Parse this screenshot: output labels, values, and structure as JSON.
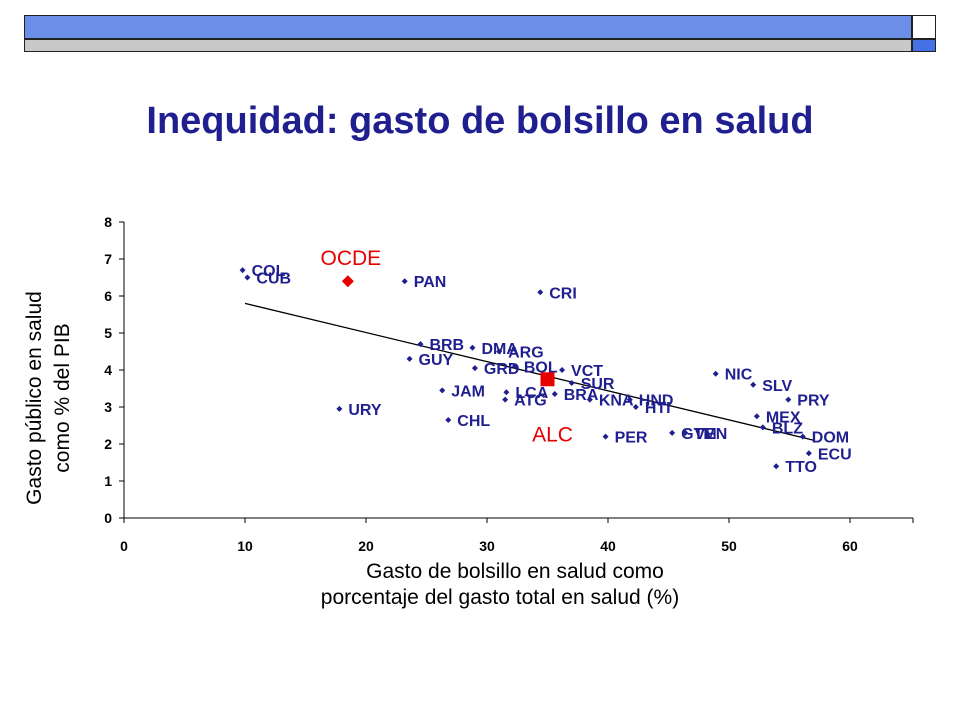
{
  "slide": {
    "title": "Inequidad: gasto de bolsillo en salud"
  },
  "chart_data": {
    "type": "scatter",
    "xlabel": [
      "Gasto de bolsillo en salud como",
      "porcentaje del gasto total en salud (%)"
    ],
    "ylabel": [
      "Gasto público en salud",
      "como % del PIB"
    ],
    "xlim": [
      0,
      65
    ],
    "ylim": [
      0,
      8
    ],
    "xticks": [
      0,
      10,
      20,
      30,
      40,
      50,
      60
    ],
    "yticks": [
      0,
      1,
      2,
      3,
      4,
      5,
      6,
      7,
      8
    ],
    "trendline": {
      "x": [
        10,
        57
      ],
      "y": [
        5.8,
        2.1
      ]
    },
    "points": [
      {
        "label": "COL",
        "x": 9.8,
        "y": 6.7
      },
      {
        "label": "CUB",
        "x": 10.2,
        "y": 6.5
      },
      {
        "label": "PAN",
        "x": 23.2,
        "y": 6.4
      },
      {
        "label": "CRI",
        "x": 34.4,
        "y": 6.1
      },
      {
        "label": "BRB",
        "x": 24.5,
        "y": 4.7
      },
      {
        "label": "DMA",
        "x": 28.8,
        "y": 4.6
      },
      {
        "label": "ARG",
        "x": 31.0,
        "y": 4.5
      },
      {
        "label": "GUY",
        "x": 23.6,
        "y": 4.3
      },
      {
        "label": "GRD",
        "x": 29.0,
        "y": 4.05
      },
      {
        "label": "BOL",
        "x": 32.3,
        "y": 4.1
      },
      {
        "label": "VCT",
        "x": 36.2,
        "y": 4.0
      },
      {
        "label": "SUR",
        "x": 37.0,
        "y": 3.65
      },
      {
        "label": "BRA",
        "x": 35.6,
        "y": 3.35
      },
      {
        "label": "KNA",
        "x": 38.5,
        "y": 3.2
      },
      {
        "label": "HND",
        "x": 41.8,
        "y": 3.2
      },
      {
        "label": "JAM",
        "x": 26.3,
        "y": 3.45
      },
      {
        "label": "LCA",
        "x": 31.6,
        "y": 3.4
      },
      {
        "label": "ATG",
        "x": 31.5,
        "y": 3.2
      },
      {
        "label": "URY",
        "x": 17.8,
        "y": 2.95
      },
      {
        "label": "CHL",
        "x": 26.8,
        "y": 2.65
      },
      {
        "label": "HTI",
        "x": 42.3,
        "y": 3.0
      },
      {
        "label": "PER",
        "x": 39.8,
        "y": 2.2
      },
      {
        "label": "GTM",
        "x": 45.3,
        "y": 2.3
      },
      {
        "label": "VEN",
        "x": 46.4,
        "y": 2.3
      },
      {
        "label": "NIC",
        "x": 48.9,
        "y": 3.9
      },
      {
        "label": "SLV",
        "x": 52.0,
        "y": 3.6
      },
      {
        "label": "PRY",
        "x": 54.9,
        "y": 3.2
      },
      {
        "label": "MEX",
        "x": 52.3,
        "y": 2.75
      },
      {
        "label": "BLZ",
        "x": 52.8,
        "y": 2.45
      },
      {
        "label": "DOM",
        "x": 56.1,
        "y": 2.2
      },
      {
        "label": "ECU",
        "x": 56.6,
        "y": 1.75
      },
      {
        "label": "TTO",
        "x": 53.9,
        "y": 1.4
      }
    ],
    "highlights": [
      {
        "label": "OCDE",
        "x": 18.5,
        "y": 6.4,
        "color": "#e60000",
        "marker": "diamond"
      },
      {
        "label": "ALC",
        "x": 35.0,
        "y": 3.75,
        "color": "#e60000",
        "marker": "square"
      }
    ],
    "point_color": "#1f1f8f",
    "highlight_color": "#e60000"
  }
}
